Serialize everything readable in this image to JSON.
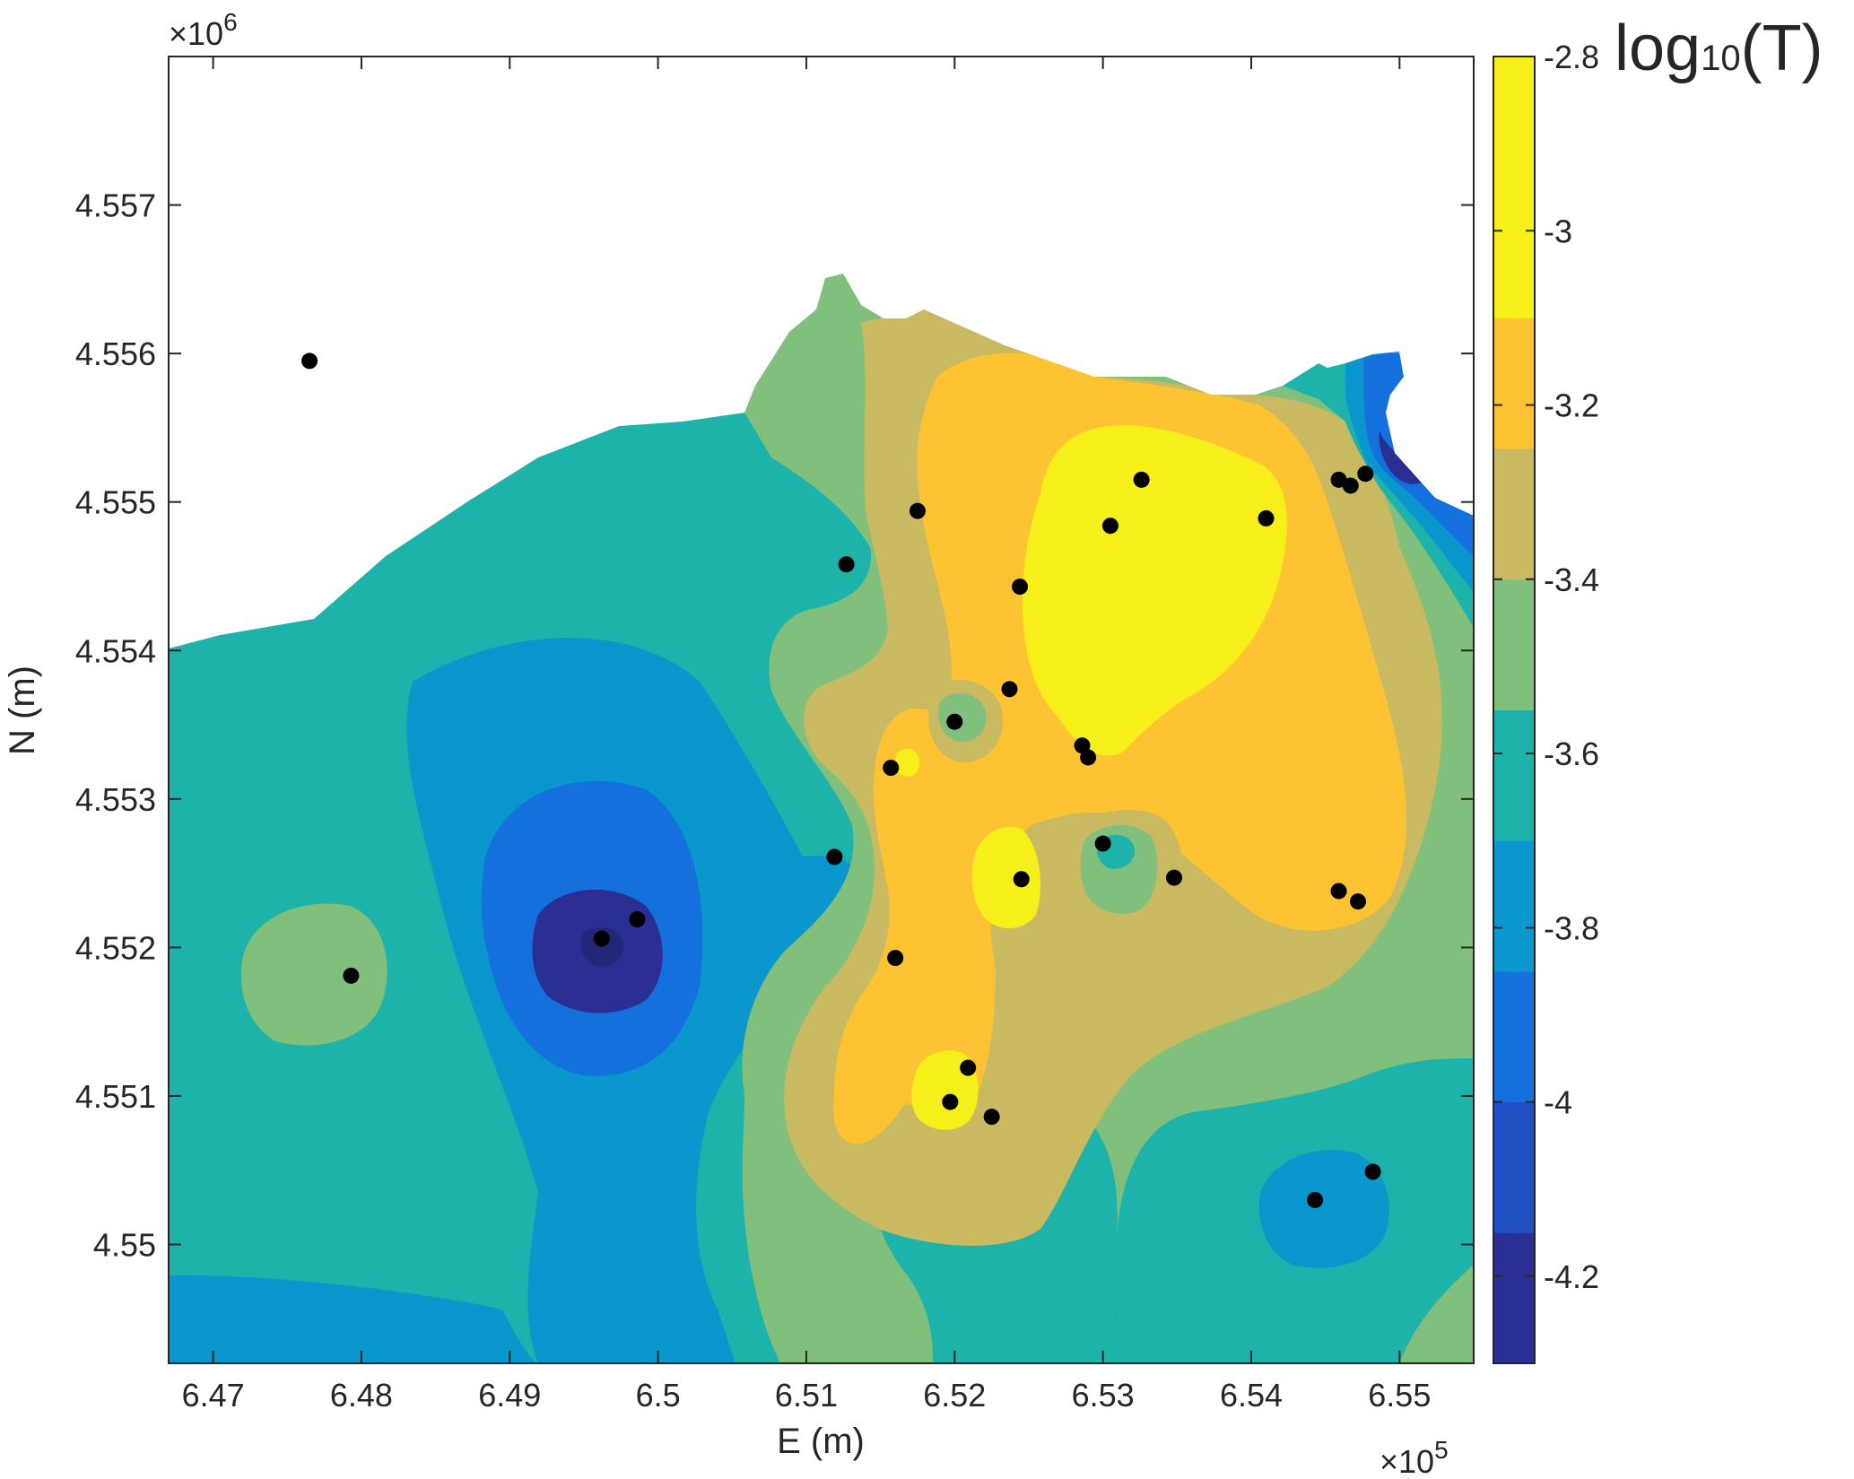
{
  "chart_data": {
    "type": "heatmap",
    "subtype": "filled-contour",
    "xlabel": "E (m)",
    "ylabel": "N (m)",
    "x_multiplier": "×10",
    "x_multiplier_exponent": "5",
    "y_multiplier": "×10",
    "y_multiplier_exponent": "6",
    "xlim": [
      6.467,
      6.555
    ],
    "ylim": [
      4.5492,
      4.558
    ],
    "x_ticks": [
      6.47,
      6.48,
      6.49,
      6.5,
      6.51,
      6.52,
      6.53,
      6.54,
      6.55
    ],
    "x_tick_labels": [
      "6.47",
      "6.48",
      "6.49",
      "6.5",
      "6.51",
      "6.52",
      "6.53",
      "6.54",
      "6.55"
    ],
    "y_ticks": [
      4.55,
      4.551,
      4.552,
      4.553,
      4.554,
      4.555,
      4.556,
      4.557
    ],
    "y_tick_labels": [
      "4.55",
      "4.551",
      "4.552",
      "4.553",
      "4.554",
      "4.555",
      "4.556",
      "4.557"
    ],
    "grid": false,
    "colorbar": {
      "title_main": "log",
      "title_sub": "10",
      "title_tail": "(T)",
      "range": [
        -4.3,
        -2.8
      ],
      "ticks": [
        -2.8,
        -3,
        -3.2,
        -3.4,
        -3.6,
        -3.8,
        -4,
        -4.2
      ],
      "tick_labels": [
        "-2.8",
        "-3",
        "-3.2",
        "-3.4",
        "-3.6",
        "-3.8",
        "-4",
        "-4.2"
      ],
      "colormap": "parula",
      "levels": [
        -4.3,
        -4.15,
        -4.0,
        -3.85,
        -3.7,
        -3.55,
        -3.4,
        -3.25,
        -3.1,
        -2.95,
        -2.8
      ],
      "colors": [
        "#2b2f93",
        "#2150c4",
        "#1470dd",
        "#0a97cd",
        "#1db2aa",
        "#80bf7c",
        "#c9ba62",
        "#fec332",
        "#f6ef19"
      ]
    },
    "wells": [
      {
        "x": 6.4765,
        "y": 4.55595
      },
      {
        "x": 6.4793,
        "y": 4.55181
      },
      {
        "x": 6.4962,
        "y": 4.55206
      },
      {
        "x": 6.4986,
        "y": 4.55219
      },
      {
        "x": 6.5119,
        "y": 4.55261
      },
      {
        "x": 6.5127,
        "y": 4.55458
      },
      {
        "x": 6.5157,
        "y": 4.55321
      },
      {
        "x": 6.516,
        "y": 4.55193
      },
      {
        "x": 6.5175,
        "y": 4.55494
      },
      {
        "x": 6.5197,
        "y": 4.55096
      },
      {
        "x": 6.52,
        "y": 4.55352
      },
      {
        "x": 6.5209,
        "y": 4.55119
      },
      {
        "x": 6.5225,
        "y": 4.55086
      },
      {
        "x": 6.5237,
        "y": 4.55374
      },
      {
        "x": 6.5244,
        "y": 4.55443
      },
      {
        "x": 6.5245,
        "y": 4.55246
      },
      {
        "x": 6.5286,
        "y": 4.55336
      },
      {
        "x": 6.529,
        "y": 4.55328
      },
      {
        "x": 6.53,
        "y": 4.5527
      },
      {
        "x": 6.5305,
        "y": 4.55484
      },
      {
        "x": 6.5326,
        "y": 4.55515
      },
      {
        "x": 6.5348,
        "y": 4.55247
      },
      {
        "x": 6.541,
        "y": 4.55489
      },
      {
        "x": 6.5443,
        "y": 4.5503
      },
      {
        "x": 6.5459,
        "y": 4.55515
      },
      {
        "x": 6.5459,
        "y": 4.55238
      },
      {
        "x": 6.5467,
        "y": 4.55511
      },
      {
        "x": 6.5472,
        "y": 4.55231
      },
      {
        "x": 6.5477,
        "y": 4.55519
      },
      {
        "x": 6.5482,
        "y": 4.55049
      }
    ]
  }
}
